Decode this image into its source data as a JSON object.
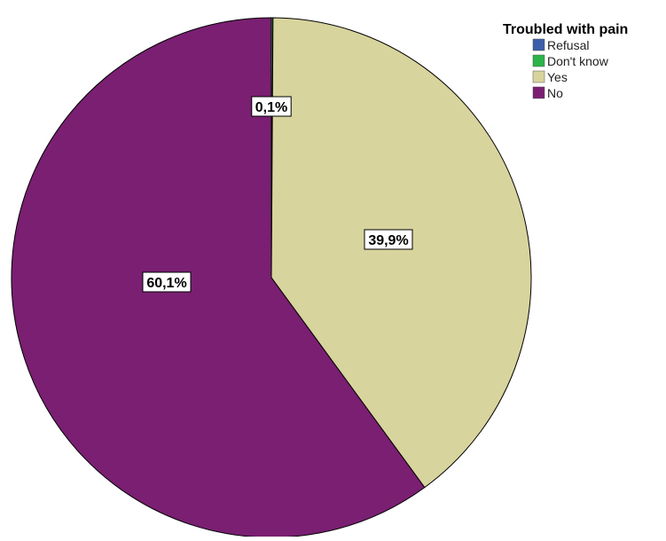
{
  "chart_data": {
    "type": "pie",
    "title": "",
    "legend_title": "Troubled with pain",
    "legend_position": "top-right",
    "categories": [
      "Refusal",
      "Don't know",
      "Yes",
      "No"
    ],
    "values": [
      0,
      0.1,
      39.9,
      60.1
    ],
    "labels": [
      "",
      "0,1%",
      "39,9%",
      "60,1%"
    ],
    "colors": [
      "#3d5ea8",
      "#2cb34a",
      "#d8d49d",
      "#7a1f72"
    ],
    "start_angle_deg": 0,
    "direction": "clockwise"
  }
}
